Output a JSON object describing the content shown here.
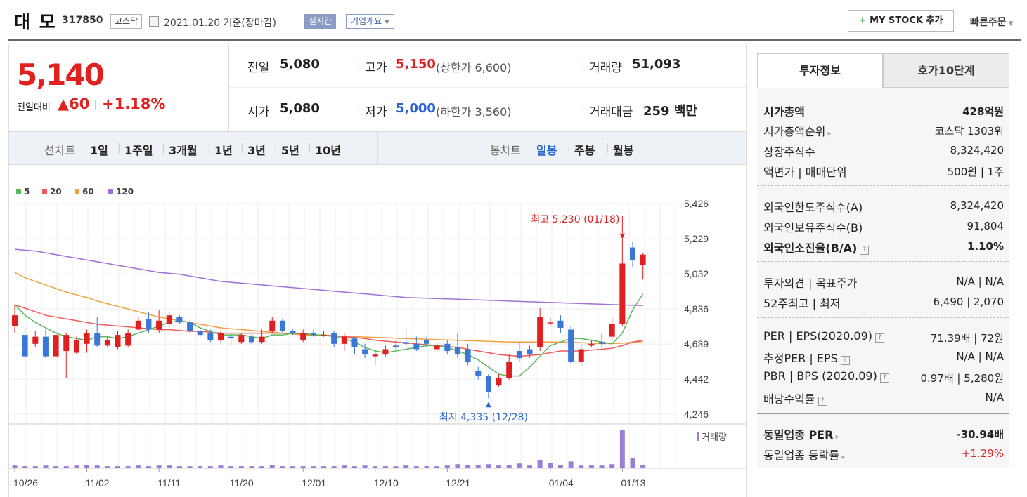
{
  "header": {
    "name": "대 모",
    "code": "317850",
    "market": "코스닥",
    "date": "2021.01.20 기준(장마감)",
    "realtime": "실시간",
    "company_info": "기업개요",
    "mystock_label": "MY STOCK 추가",
    "quick_order": "빠른주문"
  },
  "price": {
    "current": "5,140",
    "prev_label": "전일대비",
    "change": "▲60",
    "change_pct": "+1.18%",
    "prev_close_label": "전일",
    "prev_close": "5,080",
    "high_label": "고가",
    "high": "5,150",
    "upper_limit": "(상한가 6,600)",
    "volume_label": "거래량",
    "volume": "51,093",
    "open_label": "시가",
    "open": "5,080",
    "low_label": "저가",
    "low": "5,000",
    "lower_limit": "(하한가 3,560)",
    "amount_label": "거래대금",
    "amount": "259 백만"
  },
  "periods": {
    "line_label": "선차트",
    "line_items": [
      "1일",
      "1주일",
      "3개월",
      "1년",
      "3년",
      "5년",
      "10년"
    ],
    "candle_label": "봉차트",
    "candle_items": [
      "일봉",
      "주봉",
      "월봉"
    ]
  },
  "chart_data": {
    "type": "candlestick",
    "legend": [
      "5",
      "20",
      "60",
      "120"
    ],
    "colors": {
      "ma5": "#5cb85c",
      "ma20": "#f05a5a",
      "ma60": "#f0a040",
      "ma120": "#a070d8",
      "up": "#e02020",
      "down": "#3a78d8",
      "volume": "#9a7fd6"
    },
    "y_ticks": [
      "5,426",
      "5,229",
      "5,032",
      "4,836",
      "4,639",
      "4,442",
      "4,246"
    ],
    "ylim": [
      4246,
      5426
    ],
    "x_labels": [
      "10/26",
      "11/02",
      "11/11",
      "11/20",
      "12/01",
      "12/10",
      "12/21",
      "01/04",
      "01/13"
    ],
    "high_note": "최고 5,230 (01/18)",
    "low_note": "최저 4,335 (12/28)",
    "volume_label": "거래량",
    "candles": [
      [
        4740,
        4800,
        4700,
        4860
      ],
      [
        4690,
        4570,
        4560,
        4730
      ],
      [
        4640,
        4680,
        4620,
        4710
      ],
      [
        4680,
        4570,
        4560,
        4720
      ],
      [
        4570,
        4690,
        4560,
        4720
      ],
      [
        4600,
        4690,
        4450,
        4700
      ],
      [
        4590,
        4660,
        4580,
        4680
      ],
      [
        4640,
        4700,
        4590,
        4720
      ],
      [
        4700,
        4630,
        4620,
        4790
      ],
      [
        4630,
        4660,
        4620,
        4680
      ],
      [
        4620,
        4690,
        4610,
        4710
      ],
      [
        4630,
        4700,
        4620,
        4720
      ],
      [
        4720,
        4770,
        4710,
        4790
      ],
      [
        4780,
        4720,
        4700,
        4820
      ],
      [
        4720,
        4770,
        4700,
        4830
      ],
      [
        4750,
        4800,
        4730,
        4820
      ],
      [
        4790,
        4760,
        4750,
        4800
      ],
      [
        4760,
        4710,
        4700,
        4770
      ],
      [
        4710,
        4690,
        4680,
        4730
      ],
      [
        4700,
        4660,
        4650,
        4720
      ],
      [
        4660,
        4700,
        4650,
        4710
      ],
      [
        4680,
        4670,
        4630,
        4700
      ],
      [
        4650,
        4690,
        4640,
        4700
      ],
      [
        4680,
        4650,
        4640,
        4690
      ],
      [
        4650,
        4680,
        4640,
        4720
      ],
      [
        4710,
        4770,
        4700,
        4790
      ],
      [
        4770,
        4710,
        4700,
        4780
      ],
      [
        4710,
        4700,
        4690,
        4720
      ],
      [
        4660,
        4700,
        4650,
        4720
      ],
      [
        4700,
        4690,
        4680,
        4720
      ],
      [
        4690,
        4690,
        4680,
        4710
      ],
      [
        4700,
        4640,
        4620,
        4710
      ],
      [
        4640,
        4680,
        4600,
        4700
      ],
      [
        4670,
        4620,
        4580,
        4680
      ],
      [
        4610,
        4580,
        4560,
        4640
      ],
      [
        4570,
        4580,
        4520,
        4610
      ],
      [
        4580,
        4610,
        4570,
        4630
      ],
      [
        4630,
        4620,
        4610,
        4660
      ],
      [
        4650,
        4640,
        4620,
        4720
      ],
      [
        4640,
        4610,
        4600,
        4680
      ],
      [
        4660,
        4640,
        4620,
        4680
      ],
      [
        4610,
        4630,
        4600,
        4650
      ],
      [
        4640,
        4600,
        4580,
        4660
      ],
      [
        4620,
        4580,
        4560,
        4700
      ],
      [
        4610,
        4540,
        4520,
        4640
      ],
      [
        4490,
        4460,
        4440,
        4510
      ],
      [
        4460,
        4370,
        4335,
        4470
      ],
      [
        4410,
        4450,
        4400,
        4470
      ],
      [
        4450,
        4540,
        4440,
        4580
      ],
      [
        4600,
        4560,
        4540,
        4650
      ],
      [
        4610,
        4580,
        4560,
        4630
      ],
      [
        4620,
        4790,
        4600,
        4840
      ],
      [
        4760,
        4760,
        4740,
        4790
      ],
      [
        4770,
        4730,
        4700,
        4800
      ],
      [
        4720,
        4540,
        4530,
        4740
      ],
      [
        4540,
        4610,
        4520,
        4640
      ],
      [
        4630,
        4640,
        4620,
        4660
      ],
      [
        4650,
        4640,
        4620,
        4700
      ],
      [
        4680,
        4750,
        4660,
        4790
      ],
      [
        4750,
        5090,
        4740,
        5230
      ],
      [
        5180,
        5110,
        5070,
        5210
      ],
      [
        5080,
        5140,
        5000,
        5150
      ]
    ],
    "ma5": [
      4860,
      4800,
      4760,
      4730,
      4700,
      4680,
      4670,
      4660,
      4680,
      4680,
      4670,
      4680,
      4700,
      4720,
      4740,
      4760,
      4770,
      4760,
      4730,
      4710,
      4690,
      4690,
      4690,
      4680,
      4670,
      4690,
      4690,
      4700,
      4700,
      4690,
      4690,
      4680,
      4670,
      4650,
      4620,
      4600,
      4590,
      4600,
      4610,
      4620,
      4630,
      4630,
      4620,
      4600,
      4580,
      4550,
      4510,
      4470,
      4460,
      4460,
      4510,
      4570,
      4630,
      4650,
      4670,
      4670,
      4660,
      4650,
      4640,
      4700,
      4830,
      4920
    ],
    "ma20": [
      4860,
      4840,
      4820,
      4800,
      4790,
      4780,
      4770,
      4760,
      4750,
      4745,
      4740,
      4735,
      4730,
      4725,
      4720,
      4720,
      4715,
      4710,
      4710,
      4705,
      4700,
      4700,
      4700,
      4700,
      4700,
      4700,
      4700,
      4700,
      4695,
      4690,
      4690,
      4685,
      4680,
      4675,
      4670,
      4660,
      4655,
      4650,
      4645,
      4640,
      4635,
      4630,
      4625,
      4620,
      4610,
      4600,
      4590,
      4580,
      4575,
      4570,
      4575,
      4580,
      4590,
      4600,
      4600,
      4600,
      4605,
      4610,
      4615,
      4630,
      4650,
      4660
    ],
    "ma60": [
      5040,
      5010,
      4990,
      4970,
      4950,
      4930,
      4915,
      4900,
      4880,
      4865,
      4850,
      4835,
      4820,
      4805,
      4790,
      4780,
      4770,
      4760,
      4750,
      4740,
      4730,
      4725,
      4720,
      4715,
      4710,
      4705,
      4700,
      4695,
      4690,
      4688,
      4686,
      4684,
      4682,
      4680,
      4678,
      4676,
      4674,
      4672,
      4670,
      4668,
      4666,
      4664,
      4662,
      4660,
      4658,
      4656,
      4654,
      4652,
      4650,
      4650,
      4650,
      4650,
      4650,
      4650,
      4648,
      4646,
      4644,
      4642,
      4642,
      4644,
      4648,
      4652
    ],
    "ma120": [
      5170,
      5165,
      5160,
      5150,
      5140,
      5130,
      5120,
      5110,
      5100,
      5090,
      5080,
      5070,
      5060,
      5050,
      5040,
      5035,
      5030,
      5020,
      5010,
      5000,
      4990,
      4985,
      4980,
      4975,
      4970,
      4965,
      4960,
      4955,
      4950,
      4945,
      4940,
      4935,
      4930,
      4925,
      4920,
      4915,
      4910,
      4905,
      4900,
      4898,
      4896,
      4894,
      4892,
      4890,
      4888,
      4886,
      4884,
      4882,
      4880,
      4878,
      4876,
      4874,
      4872,
      4870,
      4868,
      4866,
      4864,
      4862,
      4860,
      4858,
      4856,
      4855
    ],
    "volume": [
      4,
      3,
      3,
      4,
      3,
      3,
      4,
      5,
      4,
      3,
      3,
      3,
      4,
      3,
      4,
      4,
      3,
      3,
      3,
      3,
      4,
      3,
      3,
      3,
      3,
      5,
      3,
      3,
      3,
      3,
      3,
      3,
      4,
      3,
      4,
      3,
      3,
      3,
      4,
      3,
      3,
      3,
      4,
      6,
      5,
      5,
      6,
      4,
      5,
      7,
      4,
      12,
      8,
      5,
      10,
      4,
      4,
      4,
      6,
      56,
      15,
      5
    ]
  },
  "right": {
    "tab_active": "투자정보",
    "tab_other": "호가10단계",
    "rows": [
      {
        "k": "시가총액",
        "v": "428억원",
        "bold": true
      },
      {
        "k": "시가총액순위",
        "v": "코스닥 1303위",
        "arrow": true
      },
      {
        "k": "상장주식수",
        "v": "8,324,420"
      },
      {
        "k": "액면가 | 매매단위",
        "v": "500원 | 1주"
      },
      {
        "k": "외국인한도주식수(A)",
        "v": "8,324,420"
      },
      {
        "k": "외국인보유주식수(B)",
        "v": "91,804"
      },
      {
        "k": "외국인소진율(B/A)",
        "v": "1.10%",
        "bold": true,
        "q": true
      },
      {
        "k": "투자의견 | 목표주가",
        "v": "N/A | N/A"
      },
      {
        "k": "52주최고 | 최저",
        "v": "6,490 | 2,070"
      },
      {
        "k": "PER | EPS(2020.09)",
        "v": "71.39배 | 72원",
        "q": true
      },
      {
        "k": "추정PER | EPS",
        "v": "N/A | N/A",
        "q": true
      },
      {
        "k": "PBR | BPS (2020.09)",
        "v": "0.97배 | 5,280원",
        "q": true
      },
      {
        "k": "배당수익률",
        "v": "N/A",
        "q": true
      },
      {
        "k": "동일업종 PER",
        "v": "-30.94배",
        "bold": true,
        "arrow": true
      },
      {
        "k": "동일업종 등락률",
        "v": "+1.29%",
        "arrow": true,
        "red": true
      }
    ]
  }
}
